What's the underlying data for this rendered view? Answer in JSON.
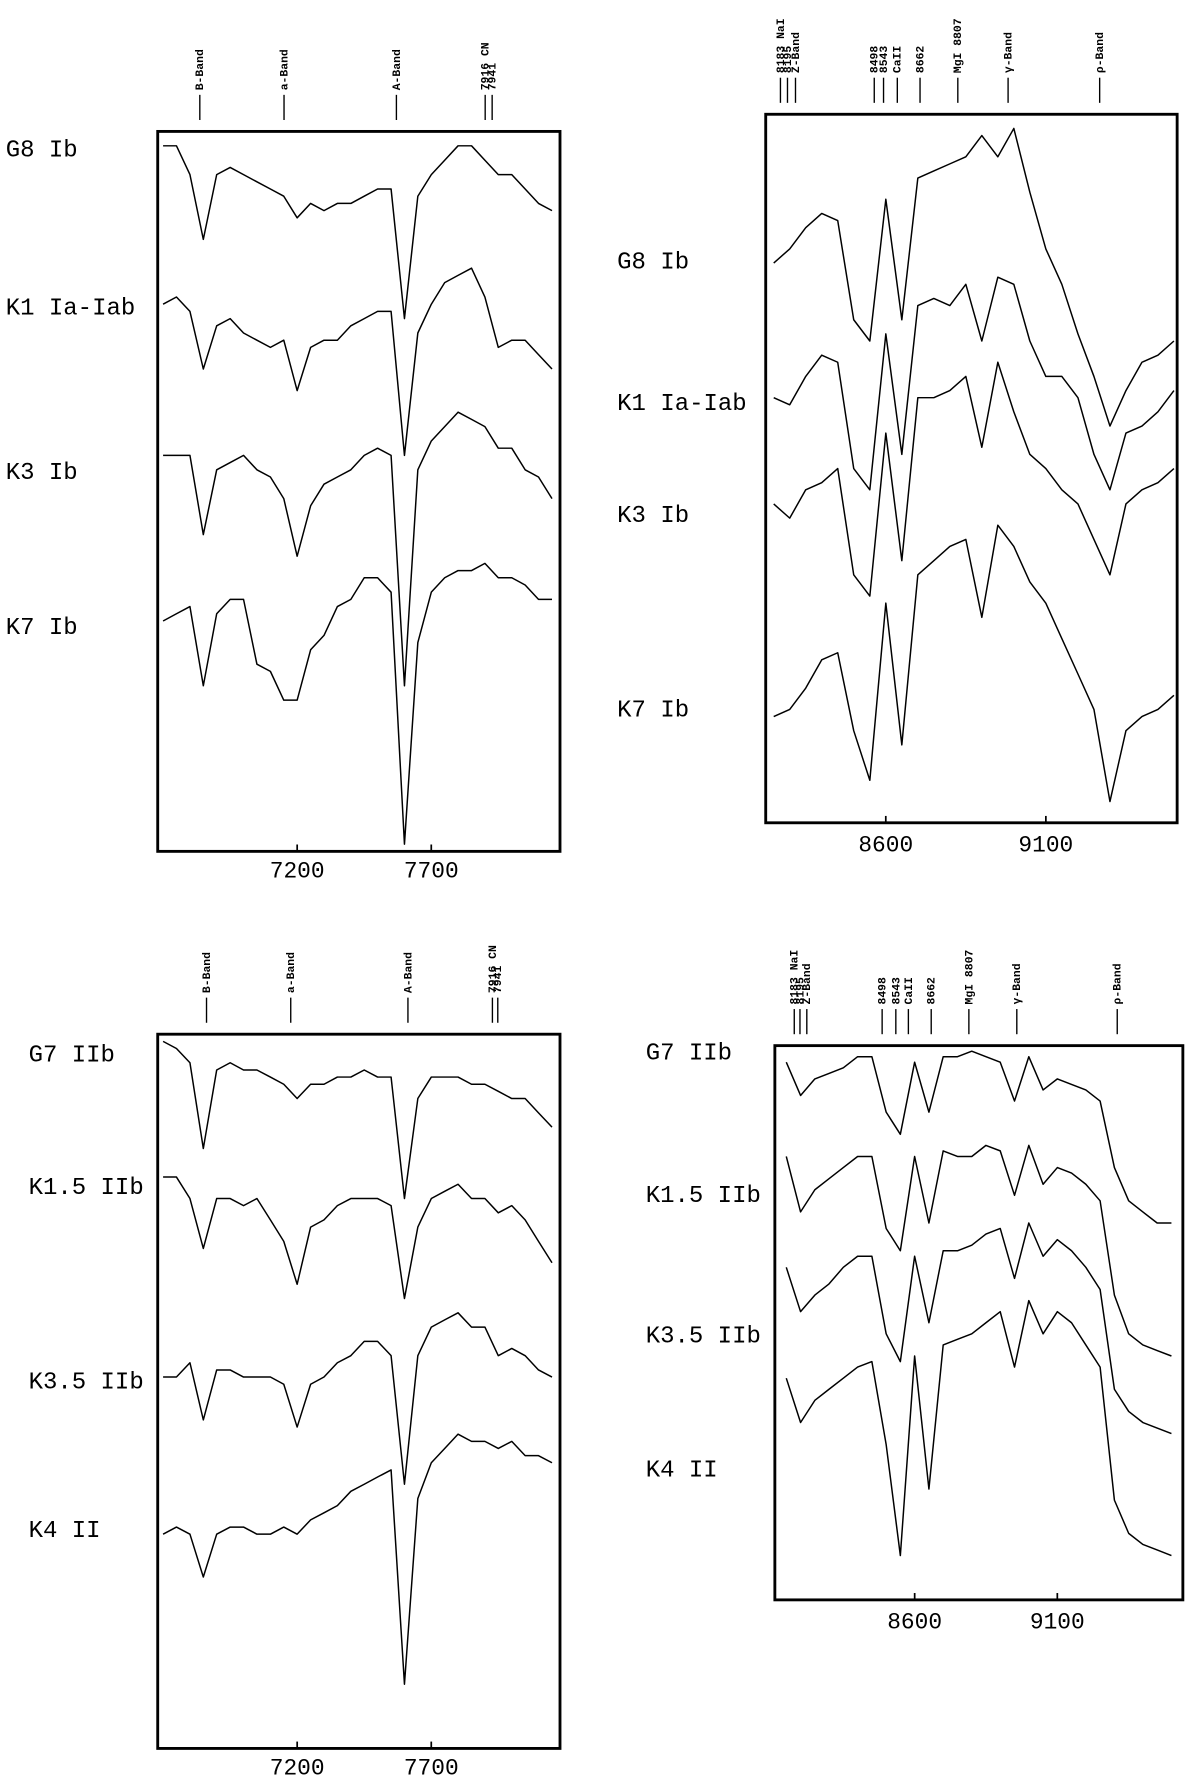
{
  "chart_data": [
    {
      "type": "line",
      "x": [
        6700,
        6750,
        6800,
        6850,
        6900,
        6950,
        7000,
        7050,
        7100,
        7150,
        7200,
        7250,
        7300,
        7350,
        7400,
        7450,
        7500,
        7550,
        7600,
        7650,
        7700,
        7750,
        7800,
        7850,
        7900,
        7950,
        8000,
        8050,
        8100,
        8150
      ],
      "xlim": [
        6680,
        8180
      ],
      "xticks": [
        7200,
        7700
      ],
      "ylim": [
        0,
        100
      ],
      "annotations": [
        {
          "text": "B-Band",
          "x": 6837
        },
        {
          "text": "a-Band",
          "x": 7151
        },
        {
          "text": "A-Band",
          "x": 7570
        },
        {
          "text": "7916 CN",
          "x": 7901
        },
        {
          "text": "7941",
          "x": 7927
        }
      ],
      "series": [
        {
          "name": "G8 Ib",
          "color": "#000000",
          "values": [
            98,
            98,
            94,
            85,
            94,
            95,
            94,
            93,
            92,
            91,
            88,
            90,
            89,
            90,
            90,
            91,
            92,
            92,
            74,
            91,
            94,
            96,
            98,
            98,
            96,
            94,
            94,
            92,
            90,
            89
          ]
        },
        {
          "name": "K1 Ia-Iab",
          "color": "#000000",
          "values": [
            76,
            77,
            75,
            67,
            73,
            74,
            72,
            71,
            70,
            71,
            64,
            70,
            71,
            71,
            73,
            74,
            75,
            75,
            55,
            72,
            76,
            79,
            80,
            81,
            77,
            70,
            71,
            71,
            69,
            67
          ]
        },
        {
          "name": "K3 Ib",
          "color": "#000000",
          "values": [
            55,
            55,
            55,
            44,
            53,
            54,
            55,
            53,
            52,
            49,
            41,
            48,
            51,
            52,
            53,
            55,
            56,
            55,
            23,
            53,
            57,
            59,
            61,
            60,
            59,
            56,
            56,
            53,
            52,
            49
          ]
        },
        {
          "name": "K7 Ib",
          "color": "#000000",
          "values": [
            32,
            33,
            34,
            23,
            33,
            35,
            35,
            26,
            25,
            21,
            21,
            28,
            30,
            34,
            35,
            38,
            38,
            36,
            1,
            29,
            36,
            38,
            39,
            39,
            40,
            38,
            38,
            37,
            35,
            35
          ]
        }
      ]
    },
    {
      "type": "line",
      "x": [
        8250,
        8300,
        8350,
        8400,
        8450,
        8500,
        8550,
        8600,
        8650,
        8700,
        8750,
        8800,
        8850,
        8900,
        8950,
        9000,
        9050,
        9100,
        9150,
        9200,
        9250,
        9300,
        9350,
        9400,
        9450,
        9500
      ],
      "xlim": [
        8225,
        9510
      ],
      "xticks": [
        8600,
        9100
      ],
      "ylim": [
        0,
        100
      ],
      "annotations": [
        {
          "text": "8183 NaI",
          "x": 8271
        },
        {
          "text": "8195",
          "x": 8293
        },
        {
          "text": "Z-Band",
          "x": 8318
        },
        {
          "text": "8498",
          "x": 8564
        },
        {
          "text": "8543",
          "x": 8593
        },
        {
          "text": "CaII",
          "x": 8636
        },
        {
          "text": "8662",
          "x": 8707
        },
        {
          "text": "MgI 8807",
          "x": 8825
        },
        {
          "text": "γ-Band",
          "x": 8982
        },
        {
          "text": "ρ-Band",
          "x": 9268
        }
      ],
      "series": [
        {
          "name": "G8 Ib",
          "color": "#000000",
          "values": [
            79,
            81,
            84,
            86,
            85,
            71,
            68,
            88,
            71,
            91,
            92,
            93,
            94,
            97,
            94,
            98,
            89,
            81,
            76,
            69,
            63,
            56,
            61,
            65,
            66,
            68
          ]
        },
        {
          "name": "K1 Ia-Iab",
          "color": "#000000",
          "values": [
            60,
            59,
            63,
            66,
            65,
            50,
            47,
            69,
            52,
            73,
            74,
            73,
            76,
            68,
            77,
            76,
            68,
            63,
            63,
            60,
            52,
            47,
            55,
            56,
            58,
            61
          ]
        },
        {
          "name": "K3 Ib",
          "color": "#000000",
          "values": [
            45,
            43,
            47,
            48,
            50,
            35,
            32,
            55,
            37,
            60,
            60,
            61,
            63,
            53,
            65,
            58,
            52,
            50,
            47,
            45,
            40,
            35,
            45,
            47,
            48,
            50
          ]
        },
        {
          "name": "K7 Ib",
          "color": "#000000",
          "values": [
            15,
            16,
            19,
            23,
            24,
            13,
            6,
            31,
            11,
            35,
            37,
            39,
            40,
            29,
            42,
            39,
            34,
            31,
            26,
            21,
            16,
            3,
            13,
            15,
            16,
            18
          ]
        }
      ]
    },
    {
      "type": "line",
      "x": [
        6700,
        6750,
        6800,
        6850,
        6900,
        6950,
        7000,
        7050,
        7100,
        7150,
        7200,
        7250,
        7300,
        7350,
        7400,
        7450,
        7500,
        7550,
        7600,
        7650,
        7700,
        7750,
        7800,
        7850,
        7900,
        7950,
        8000,
        8050,
        8100,
        8150
      ],
      "xlim": [
        6680,
        8180
      ],
      "xticks": [
        7200,
        7700
      ],
      "ylim": [
        0,
        100
      ],
      "annotations": [
        {
          "text": "B-Band",
          "x": 6862
        },
        {
          "text": "a-Band",
          "x": 7176
        },
        {
          "text": "A-Band",
          "x": 7613
        },
        {
          "text": "7916 CN",
          "x": 7928
        },
        {
          "text": "7941",
          "x": 7948
        }
      ],
      "series": [
        {
          "name": "G7 IIb",
          "color": "#000000",
          "values": [
            99,
            98,
            96,
            84,
            95,
            96,
            95,
            95,
            94,
            93,
            91,
            93,
            93,
            94,
            94,
            95,
            94,
            94,
            77,
            91,
            94,
            94,
            94,
            93,
            93,
            92,
            91,
            91,
            89,
            87
          ]
        },
        {
          "name": "K1.5 IIb",
          "color": "#000000",
          "values": [
            80,
            80,
            77,
            70,
            77,
            77,
            76,
            77,
            74,
            71,
            65,
            73,
            74,
            76,
            77,
            77,
            77,
            76,
            63,
            73,
            77,
            78,
            79,
            77,
            77,
            75,
            76,
            74,
            71,
            68
          ]
        },
        {
          "name": "K3.5 IIb",
          "color": "#000000",
          "values": [
            52,
            52,
            54,
            46,
            53,
            53,
            52,
            52,
            52,
            51,
            45,
            51,
            52,
            54,
            55,
            57,
            57,
            55,
            37,
            55,
            59,
            60,
            61,
            59,
            59,
            55,
            56,
            55,
            53,
            52
          ]
        },
        {
          "name": "K4 II",
          "color": "#000000",
          "values": [
            30,
            31,
            30,
            24,
            30,
            31,
            31,
            30,
            30,
            31,
            30,
            32,
            33,
            34,
            36,
            37,
            38,
            39,
            9,
            35,
            40,
            42,
            44,
            43,
            43,
            42,
            43,
            41,
            41,
            40
          ]
        }
      ]
    },
    {
      "type": "line",
      "x": [
        8150,
        8200,
        8250,
        8300,
        8350,
        8400,
        8450,
        8500,
        8550,
        8600,
        8650,
        8700,
        8750,
        8800,
        8850,
        8900,
        8950,
        9000,
        9050,
        9100,
        9150,
        9200,
        9250,
        9300,
        9350,
        9400,
        9450,
        9500
      ],
      "xlim": [
        8110,
        9540
      ],
      "xticks": [
        8600,
        9100
      ],
      "ylim": [
        0,
        100
      ],
      "annotations": [
        {
          "text": "8183 NaI",
          "x": 8178
        },
        {
          "text": "8195",
          "x": 8198
        },
        {
          "text": "Z-Band",
          "x": 8222
        },
        {
          "text": "8498",
          "x": 8486
        },
        {
          "text": "8543",
          "x": 8534
        },
        {
          "text": "CaII",
          "x": 8578
        },
        {
          "text": "8662",
          "x": 8658
        },
        {
          "text": "MgI 8807",
          "x": 8790
        },
        {
          "text": "γ-Band",
          "x": 8958
        },
        {
          "text": "ρ-Band",
          "x": 9310
        }
      ],
      "series": [
        {
          "name": "G7 IIb",
          "color": "#000000",
          "values": [
            97,
            91,
            94,
            95,
            96,
            98,
            98,
            88,
            84,
            97,
            88,
            98,
            98,
            99,
            98,
            97,
            90,
            98,
            92,
            94,
            93,
            92,
            90,
            78,
            72,
            70,
            68,
            68
          ]
        },
        {
          "name": "K1.5 IIb",
          "color": "#000000",
          "values": [
            80,
            70,
            74,
            76,
            78,
            80,
            80,
            67,
            63,
            80,
            68,
            81,
            80,
            80,
            82,
            81,
            73,
            82,
            75,
            78,
            77,
            75,
            72,
            55,
            48,
            46,
            45,
            44
          ]
        },
        {
          "name": "K3.5 IIb",
          "color": "#000000",
          "values": [
            60,
            52,
            55,
            57,
            60,
            62,
            62,
            48,
            43,
            62,
            50,
            63,
            63,
            64,
            66,
            67,
            58,
            68,
            62,
            65,
            63,
            60,
            56,
            38,
            34,
            32,
            31,
            30
          ]
        },
        {
          "name": "K4 II",
          "color": "#000000",
          "values": [
            40,
            32,
            36,
            38,
            40,
            42,
            43,
            28,
            8,
            44,
            20,
            46,
            47,
            48,
            50,
            52,
            42,
            54,
            48,
            52,
            50,
            46,
            42,
            18,
            12,
            10,
            9,
            8
          ]
        }
      ]
    }
  ]
}
